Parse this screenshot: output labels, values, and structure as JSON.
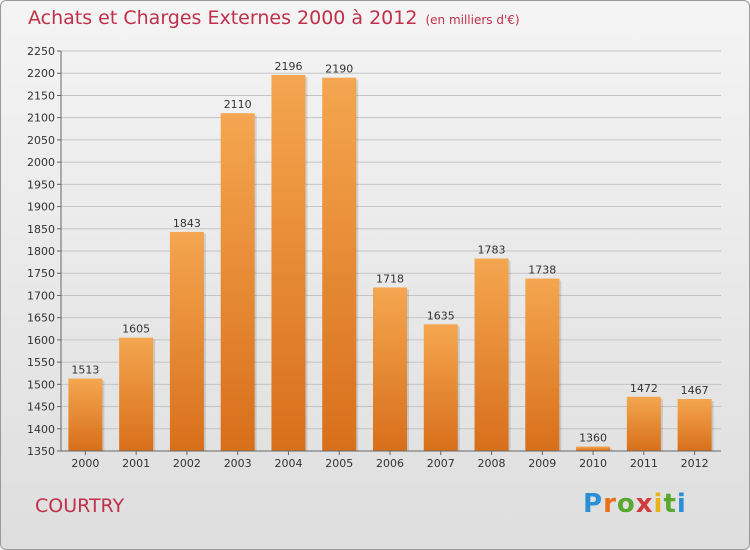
{
  "title": "Achats et Charges Externes 2000 à 2012",
  "unit": "(en milliers d'€)",
  "city": "COURTRY",
  "logo": "Proxiti",
  "colors": {
    "accent": "#c0304a",
    "bar_top": "#f5a650",
    "bar_bottom": "#d86f1a"
  },
  "chart_data": {
    "type": "bar",
    "categories": [
      "2000",
      "2001",
      "2002",
      "2003",
      "2004",
      "2005",
      "2006",
      "2007",
      "2008",
      "2009",
      "2010",
      "2011",
      "2012"
    ],
    "values": [
      1513,
      1605,
      1843,
      2110,
      2196,
      2190,
      1718,
      1635,
      1783,
      1738,
      1360,
      1472,
      1467
    ],
    "ylim": [
      1350,
      2250
    ],
    "yticks": [
      1350,
      1400,
      1450,
      1500,
      1550,
      1600,
      1650,
      1700,
      1750,
      1800,
      1850,
      1900,
      1950,
      2000,
      2050,
      2100,
      2150,
      2200,
      2250
    ],
    "grid": true
  }
}
